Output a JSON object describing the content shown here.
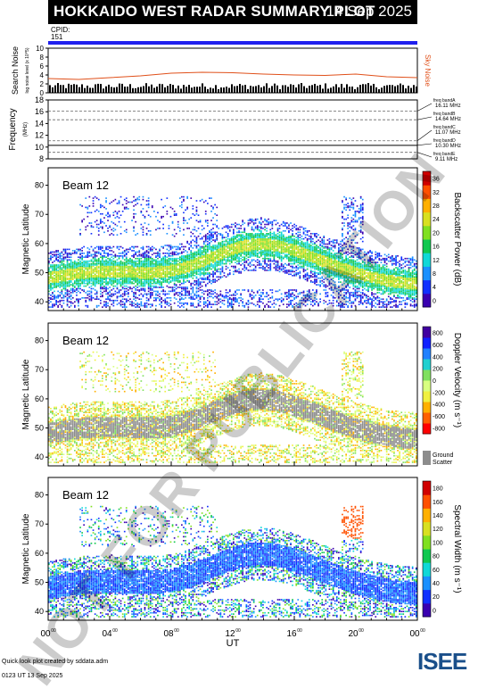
{
  "header": {
    "title": "HOKKAIDO WEST RADAR SUMMARY PLOT",
    "date": "14 Sep 2025",
    "cpid_label": "CPID:",
    "cpid_value": "151"
  },
  "colors": {
    "accent_blue": "#2020ee",
    "noise_red": "#e0501a"
  },
  "chart_data": [
    {
      "type": "line",
      "panel": "search_noise",
      "ylabel": "Search Noise",
      "ylabel_sub": "log noise level (x 10^5)",
      "side_label": "Sky Noise",
      "ylim": [
        0,
        10
      ],
      "yticks": [
        "0",
        "2",
        "4",
        "6",
        "8",
        "10"
      ],
      "series": [
        {
          "name": "Sky Noise",
          "x": [
            0,
            2,
            4,
            6,
            8,
            10,
            12,
            14,
            16,
            18,
            20,
            22,
            24
          ],
          "values": [
            3.2,
            3.0,
            3.4,
            3.8,
            4.4,
            4.6,
            4.5,
            4.2,
            4.0,
            3.9,
            4.2,
            3.6,
            3.4
          ]
        }
      ]
    },
    {
      "type": "line",
      "panel": "frequency",
      "ylabel": "Frequency",
      "ylabel_sub": "(MHz)",
      "ylim": [
        8,
        18
      ],
      "yticks": [
        "8",
        "10",
        "12",
        "14",
        "16",
        "18"
      ],
      "bands": [
        {
          "label": "freq bandA",
          "value_label": "16.11 MHz",
          "value": 16.11
        },
        {
          "label": "freq bandB",
          "value_label": "14.64 MHz",
          "value": 14.64
        },
        {
          "label": "freq bandC",
          "value_label": "11.07 MHz",
          "value": 11.07
        },
        {
          "label": "freq bandD",
          "value_label": "10.30 MHz",
          "value": 10.3
        },
        {
          "label": "freq bandE",
          "value_label": "9.11 MHz",
          "value": 9.11
        }
      ]
    },
    {
      "type": "heatmap",
      "panel": "power",
      "beam_label": "Beam 12",
      "ylabel": "Magnetic Latitude",
      "ylim": [
        37,
        86
      ],
      "yticks": [
        "40",
        "50",
        "60",
        "70",
        "80"
      ],
      "colorbar_label": "Backscatter Power (dB)",
      "colorbar_ticks": [
        "0",
        "4",
        "8",
        "12",
        "16",
        "20",
        "24",
        "28",
        "32",
        "36"
      ]
    },
    {
      "type": "heatmap",
      "panel": "velocity",
      "beam_label": "Beam 12",
      "ylabel": "Magnetic Latitude",
      "ylim": [
        37,
        86
      ],
      "yticks": [
        "40",
        "50",
        "60",
        "70",
        "80"
      ],
      "colorbar_label": "Doppler Velocity (m s⁻¹)",
      "colorbar_ticks": [
        "-800",
        "-600",
        "-400",
        "-200",
        "0",
        "200",
        "400",
        "600",
        "800"
      ],
      "ground_scatter_label1": "Ground",
      "ground_scatter_label2": "Scatter"
    },
    {
      "type": "heatmap",
      "panel": "width",
      "beam_label": "Beam 12",
      "ylabel": "Magnetic Latitude",
      "ylim": [
        37,
        86
      ],
      "yticks": [
        "40",
        "50",
        "60",
        "70",
        "80"
      ],
      "colorbar_label": "Spectral Width (m s⁻¹)",
      "colorbar_ticks": [
        "0",
        "20",
        "40",
        "60",
        "80",
        "100",
        "120",
        "140",
        "160",
        "180"
      ],
      "xlabel": "UT",
      "xticks": [
        "00",
        "04",
        "08",
        "12",
        "16",
        "20",
        "00"
      ],
      "xtick_sup": "00",
      "xlim": [
        0,
        24
      ]
    }
  ],
  "watermark": "NOT FOR PUBLICATION",
  "footer": {
    "line1": "Quick look plot created by sddata.adm",
    "line2": "0123 UT 13 Sep 2025"
  },
  "logo": {
    "text": "ISEE"
  }
}
